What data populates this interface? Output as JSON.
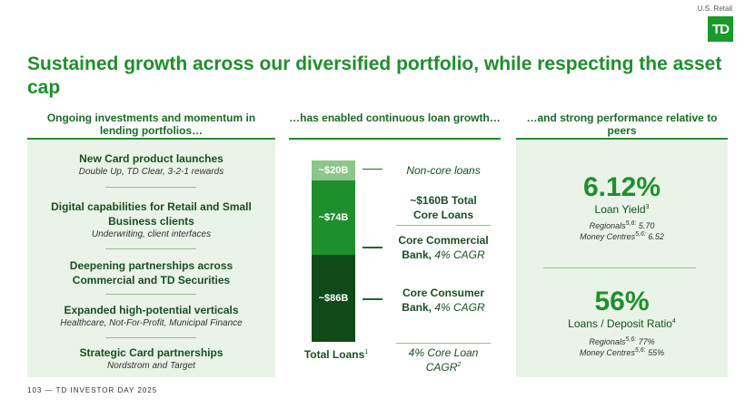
{
  "region_tag": "U.S. Retail",
  "logo_text": "TD",
  "title": "Sustained growth across our diversified portfolio, while respecting the asset cap",
  "columns": {
    "left_header": "Ongoing investments and momentum in lending portfolios…",
    "middle_header": "…has enabled continuous loan growth…",
    "right_header": "…and strong performance relative to peers"
  },
  "investments": [
    {
      "title": "New Card product launches",
      "subtitle": "Double Up, TD Clear, 3-2-1 rewards"
    },
    {
      "title": "Digital capabilities for Retail and Small Business clients",
      "subtitle": "Underwriting, client interfaces"
    },
    {
      "title": "Deepening partnerships across Commercial and TD Securities",
      "subtitle": ""
    },
    {
      "title": "Expanded high-potential verticals",
      "subtitle": "Healthcare, Not-For-Profit, Municipal Finance"
    },
    {
      "title": "Strategic Card partnerships",
      "subtitle": "Nordstrom and Target"
    }
  ],
  "chart_data": {
    "type": "bar",
    "stacked": true,
    "categories": [
      "Total Loans"
    ],
    "unit": "$B",
    "series": [
      {
        "name": "Core Consumer Bank",
        "values": [
          86
        ],
        "label": "~$86B",
        "color": "#0f4a18",
        "annotation": "Core Consumer",
        "annotation2": "Bank,",
        "cagr": "4% CAGR"
      },
      {
        "name": "Core Commercial Bank",
        "values": [
          74
        ],
        "label": "~$74B",
        "color": "#1f8f2c",
        "annotation": "Core Commercial",
        "annotation2": "Bank,",
        "cagr": "4% CAGR"
      },
      {
        "name": "Non-core loans",
        "values": [
          20
        ],
        "label": "~$20B",
        "color": "#8cc68a",
        "annotation": "Non-core loans"
      }
    ],
    "core_total_line1": "~$160B Total",
    "core_total_line2": "Core Loans",
    "xlabel": "Total Loans",
    "xlabel_sup": "1",
    "footnote_line1": "4% Core Loan",
    "footnote_line2": "CAGR",
    "footnote_sup": "2"
  },
  "metrics": {
    "loan_yield": {
      "value": "6.12%",
      "label": "Loan Yield",
      "sup": "3",
      "peer1_name": "Regionals",
      "peer1_sup": "5,6:",
      "peer1_value": " 5.70",
      "peer2_name": "Money Centres",
      "peer2_sup": "5,6:",
      "peer2_value": " 6.52"
    },
    "ldr": {
      "value": "56%",
      "label": "Loans / Deposit Ratio",
      "sup": "4",
      "peer1_name": "Regionals",
      "peer1_sup": "5,6:",
      "peer1_value": " 77%",
      "peer2_name": "Money Centres",
      "peer2_sup": "5,6:",
      "peer2_value": " 55%"
    }
  },
  "footer": "103 — TD INVESTOR DAY 2025"
}
